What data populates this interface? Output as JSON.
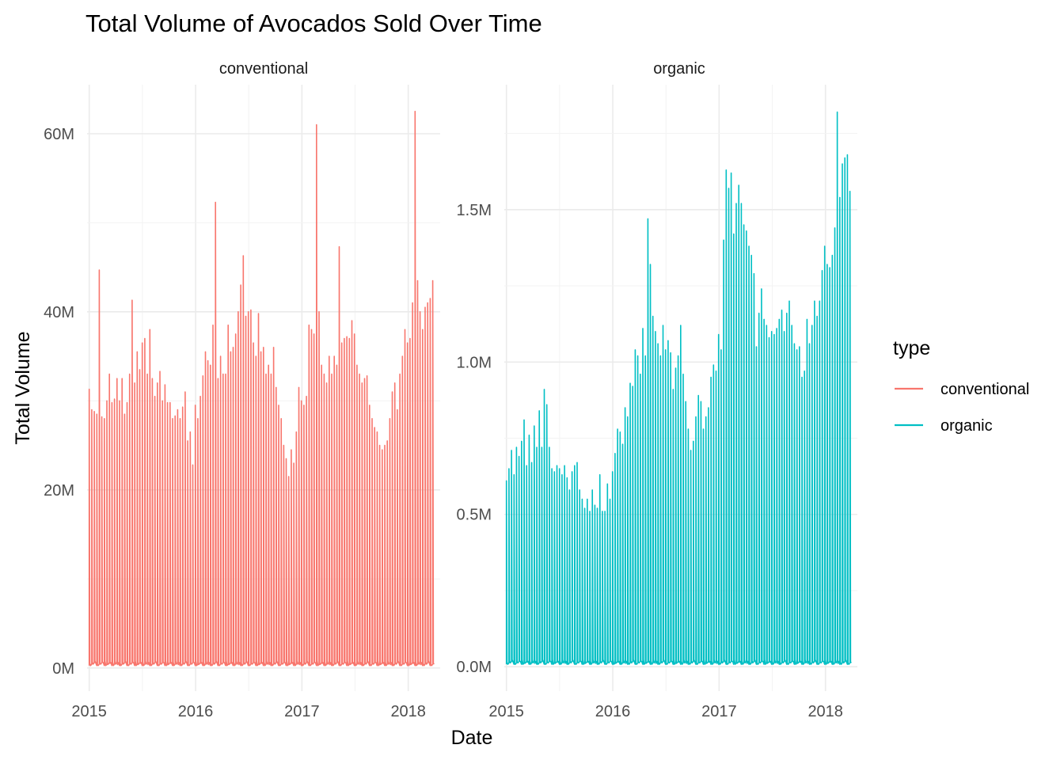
{
  "chart_data": {
    "type": "line",
    "title": "Total Volume of Avocados Sold Over Time",
    "xlabel": "Date",
    "ylabel": "Total Volume",
    "grid": true,
    "legend": {
      "title": "type",
      "placement": "right",
      "entries": [
        {
          "name": "conventional",
          "color": "#F8766D"
        },
        {
          "name": "organic",
          "color": "#00BFC4"
        }
      ]
    },
    "x_ticks": [
      "2015",
      "2016",
      "2017",
      "2018"
    ],
    "x_range": [
      2014.98,
      2018.3
    ],
    "note": "",
    "panels": [
      {
        "strip": "conventional",
        "series_name": "conventional",
        "color": "#F8766D",
        "ylim": [
          -2600000,
          65500000
        ],
        "y_ticks": [
          0,
          20000000,
          40000000,
          60000000
        ],
        "y_tick_labels": [
          "0M",
          "20M",
          "40M",
          "60M"
        ],
        "peak_values": [
          31.3,
          29.0,
          28.8,
          28.5,
          44.7,
          28.2,
          28.0,
          30.0,
          33.0,
          29.8,
          30.2,
          32.5,
          30.0,
          32.5,
          28.5,
          29.8,
          33.0,
          41.3,
          32.0,
          35.5,
          33.5,
          36.5,
          37.0,
          33.0,
          38.0,
          32.5,
          30.5,
          32.0,
          33.3,
          30.0,
          31.8,
          29.8,
          29.8,
          28.0,
          28.3,
          29.0,
          28.0,
          29.3,
          31.0,
          25.5,
          26.5,
          22.8,
          29.5,
          28.0,
          30.5,
          32.8,
          35.5,
          34.5,
          34.0,
          38.5,
          52.3,
          32.5,
          35.0,
          33.0,
          33.0,
          38.5,
          35.5,
          36.0,
          37.5,
          40.0,
          43.0,
          46.3,
          39.5,
          40.0,
          40.2,
          36.5,
          35.0,
          39.8,
          35.5,
          36.0,
          33.0,
          34.0,
          33.0,
          36.0,
          31.5,
          29.5,
          28.0,
          25.0,
          23.5,
          21.5,
          24.5,
          23.0,
          26.5,
          31.5,
          30.0,
          29.5,
          30.5,
          38.5,
          38.0,
          37.5,
          61.0,
          40.0,
          34.0,
          33.0,
          32.0,
          35.0,
          33.0,
          35.0,
          34.0,
          47.3,
          36.5,
          37.0,
          37.2,
          37.0,
          39.0,
          37.5,
          34.0,
          33.0,
          32.0,
          32.5,
          32.8,
          29.5,
          28.0,
          27.0,
          26.5,
          25.0,
          24.5,
          25.0,
          25.5,
          28.0,
          31.0,
          32.0,
          29.0,
          33.0,
          35.0,
          38.0,
          36.5,
          37.0,
          41.0,
          62.5,
          43.5,
          40.0,
          38.0,
          40.5,
          41.0,
          41.5,
          43.5
        ]
      },
      {
        "strip": "organic",
        "series_name": "organic",
        "color": "#00BFC4",
        "ylim": [
          -80000,
          1910000
        ],
        "y_ticks": [
          0,
          500000,
          1000000,
          1500000
        ],
        "y_tick_labels": [
          "0.0M",
          "0.5M",
          "1.0M",
          "1.5M"
        ],
        "peak_values": [
          0.61,
          0.65,
          0.71,
          0.63,
          0.72,
          0.69,
          0.74,
          0.81,
          0.66,
          0.76,
          0.67,
          0.79,
          0.72,
          0.84,
          0.72,
          0.91,
          0.86,
          0.72,
          0.65,
          0.64,
          0.66,
          0.65,
          0.63,
          0.66,
          0.62,
          0.58,
          0.64,
          0.66,
          0.67,
          0.58,
          0.55,
          0.52,
          0.55,
          0.51,
          0.58,
          0.53,
          0.52,
          0.63,
          0.51,
          0.51,
          0.6,
          0.55,
          0.64,
          0.7,
          0.78,
          0.77,
          0.73,
          0.85,
          0.82,
          0.93,
          0.92,
          1.04,
          1.02,
          0.96,
          1.11,
          1.02,
          1.47,
          1.32,
          1.15,
          1.1,
          1.06,
          1.02,
          1.12,
          1.04,
          1.07,
          1.03,
          0.91,
          0.98,
          1.02,
          1.12,
          0.96,
          0.87,
          0.78,
          0.71,
          0.74,
          0.82,
          0.89,
          0.87,
          0.78,
          0.82,
          0.85,
          0.95,
          0.99,
          0.97,
          1.09,
          1.04,
          1.4,
          1.63,
          1.57,
          1.62,
          1.42,
          1.52,
          1.58,
          1.52,
          1.45,
          1.43,
          1.38,
          1.35,
          1.29,
          1.05,
          1.16,
          1.24,
          1.14,
          1.12,
          1.08,
          1.1,
          1.09,
          1.11,
          1.14,
          1.17,
          1.1,
          1.16,
          1.2,
          1.12,
          1.06,
          1.04,
          1.05,
          0.95,
          0.97,
          1.14,
          1.06,
          1.12,
          1.2,
          1.15,
          1.2,
          1.3,
          1.38,
          1.32,
          1.31,
          1.35,
          1.44,
          1.82,
          1.54,
          1.65,
          1.67,
          1.68,
          1.56
        ]
      }
    ]
  }
}
